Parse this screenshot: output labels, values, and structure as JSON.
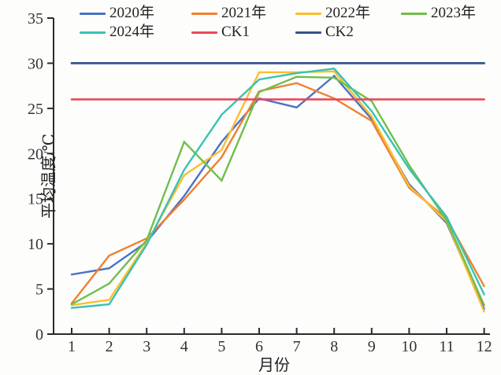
{
  "figure": {
    "bg": "#fdfdfc"
  },
  "axes": {
    "ylabel": "平均温度/℃",
    "xlabel": "月份",
    "ymin": 0,
    "ymax": 35,
    "ystep": 5,
    "xticks": [
      "1",
      "2",
      "3",
      "4",
      "5",
      "6",
      "7",
      "8",
      "9",
      "10",
      "11",
      "12"
    ],
    "axis_color": "#2b2b2b",
    "tick_label_color": "#333333"
  },
  "chart_data": {
    "type": "line",
    "title": "",
    "xlabel": "月份",
    "ylabel": "平均温度/℃",
    "x": [
      1,
      2,
      3,
      4,
      5,
      6,
      7,
      8,
      9,
      10,
      11,
      12
    ],
    "ylim": [
      0,
      35
    ],
    "grid": false,
    "legend_position": "top",
    "series": [
      {
        "name": "2020年",
        "color": "#4a72c4",
        "width": 2.4,
        "values": [
          6.6,
          7.3,
          10.2,
          15.3,
          21.3,
          26.1,
          25.1,
          28.6,
          23.8,
          16.6,
          12.3,
          2.8
        ]
      },
      {
        "name": "2021年",
        "color": "#f08030",
        "width": 2.4,
        "values": [
          3.4,
          8.7,
          10.6,
          14.9,
          19.6,
          26.9,
          27.8,
          26.1,
          23.6,
          16.2,
          12.8,
          5.3
        ]
      },
      {
        "name": "2022年",
        "color": "#fbbe2e",
        "width": 2.4,
        "values": [
          3.2,
          3.8,
          10.1,
          17.6,
          20.4,
          29.0,
          29.0,
          29.1,
          24.1,
          16.4,
          12.5,
          2.5
        ]
      },
      {
        "name": "2023年",
        "color": "#70be4a",
        "width": 2.4,
        "values": [
          3.3,
          5.6,
          10.4,
          21.3,
          17.0,
          26.8,
          28.5,
          28.4,
          25.8,
          18.7,
          12.6,
          3.2
        ]
      },
      {
        "name": "2024年",
        "color": "#38c2b4",
        "width": 2.4,
        "values": [
          2.9,
          3.3,
          9.9,
          18.2,
          24.3,
          28.2,
          28.9,
          29.4,
          24.7,
          18.3,
          13.0,
          4.4
        ]
      },
      {
        "name": "CK1",
        "color": "#e8495c",
        "width": 2.6,
        "values": [
          26,
          26,
          26,
          26,
          26,
          26,
          26,
          26,
          26,
          26,
          26,
          26
        ]
      },
      {
        "name": "CK2",
        "color": "#38528e",
        "width": 2.8,
        "values": [
          30,
          30,
          30,
          30,
          30,
          30,
          30,
          30,
          30,
          30,
          30,
          30
        ]
      }
    ]
  }
}
